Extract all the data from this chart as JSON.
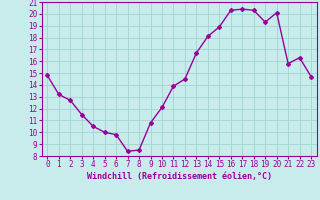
{
  "x": [
    0,
    1,
    2,
    3,
    4,
    5,
    6,
    7,
    8,
    9,
    10,
    11,
    12,
    13,
    14,
    15,
    16,
    17,
    18,
    19,
    20,
    21,
    22,
    23
  ],
  "y": [
    14.8,
    13.2,
    12.7,
    11.5,
    10.5,
    10.0,
    9.8,
    8.4,
    8.5,
    10.8,
    12.1,
    13.9,
    14.5,
    16.7,
    18.1,
    18.9,
    20.3,
    20.4,
    20.3,
    19.3,
    20.1,
    15.8,
    16.3,
    14.7
  ],
  "line_color": "#990099",
  "marker": "D",
  "marker_size": 2.0,
  "bg_color": "#c8ecec",
  "grid_color": "#a0d4d4",
  "xlabel": "Windchill (Refroidissement éolien,°C)",
  "xlabel_color": "#990099",
  "tick_color": "#990099",
  "spine_color": "#990099",
  "ylim": [
    8,
    21
  ],
  "xlim": [
    -0.5,
    23.5
  ],
  "yticks": [
    8,
    9,
    10,
    11,
    12,
    13,
    14,
    15,
    16,
    17,
    18,
    19,
    20,
    21
  ],
  "xticks": [
    0,
    1,
    2,
    3,
    4,
    5,
    6,
    7,
    8,
    9,
    10,
    11,
    12,
    13,
    14,
    15,
    16,
    17,
    18,
    19,
    20,
    21,
    22,
    23
  ],
  "tick_fontsize": 5.5,
  "label_fontsize": 6.0,
  "linewidth": 1.0
}
